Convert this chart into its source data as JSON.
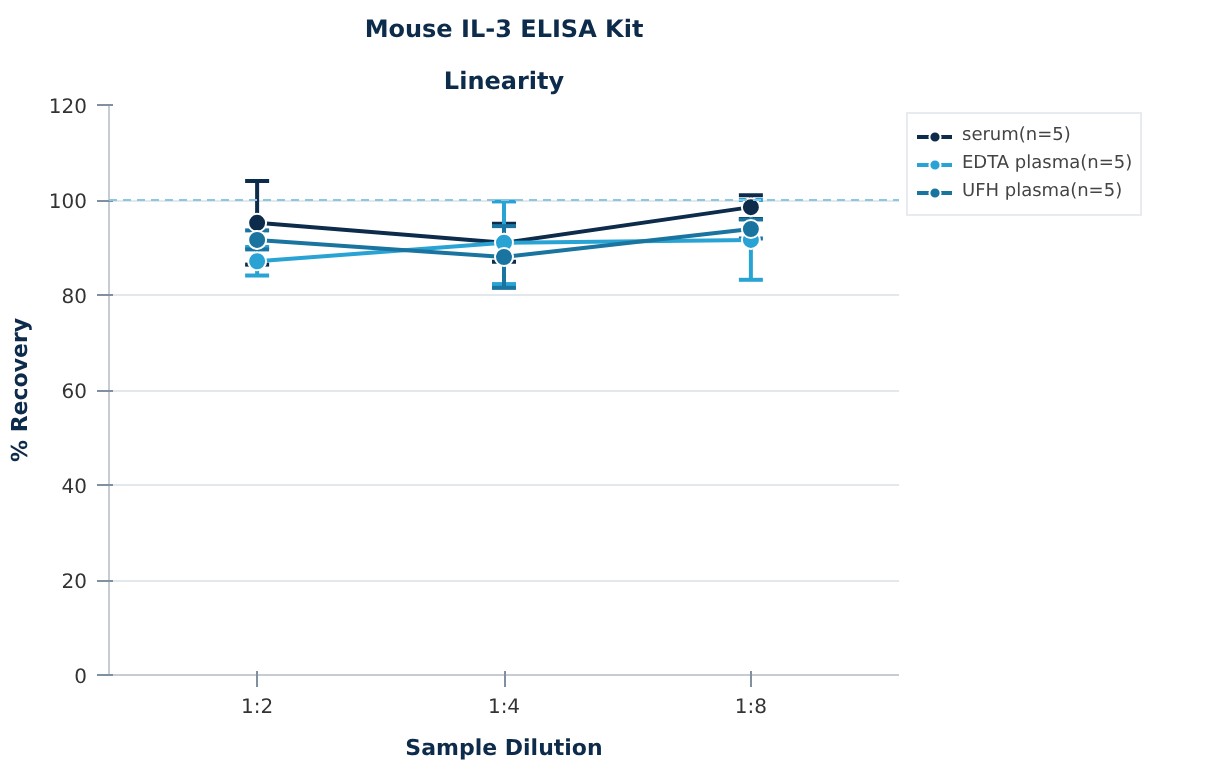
{
  "chart_data": {
    "type": "line",
    "title": "Mouse IL-3 ELISA Kit",
    "subtitle": "Linearity",
    "xlabel": "Sample Dilution",
    "ylabel": "% Recovery",
    "categories": [
      "1:2",
      "1:4",
      "1:8"
    ],
    "series": [
      {
        "name": "serum(n=5)",
        "color": "#0d2b4a",
        "values": [
          95.2,
          91,
          98.5
        ],
        "errors": [
          8.8,
          4,
          2.5
        ]
      },
      {
        "name": "EDTA plasma(n=5)",
        "color": "#29a3d4",
        "values": [
          87.1,
          91,
          91.6
        ],
        "errors": [
          3,
          8.7,
          8.4
        ]
      },
      {
        "name": "UFH plasma(n=5)",
        "color": "#1a74a0",
        "values": [
          91.6,
          88,
          93.9
        ],
        "errors": [
          2,
          6.5,
          2
        ]
      }
    ],
    "ylim": [
      0,
      120
    ],
    "yticks": [
      0,
      20,
      40,
      60,
      80,
      100,
      120
    ],
    "grid": "y",
    "legend": "top right",
    "marker": "circle",
    "line_style": "solid",
    "ref_lines": [
      {
        "axis": "y",
        "value": 100,
        "label": null,
        "color": "#8cc6e0",
        "line_style": "dashed"
      }
    ]
  }
}
